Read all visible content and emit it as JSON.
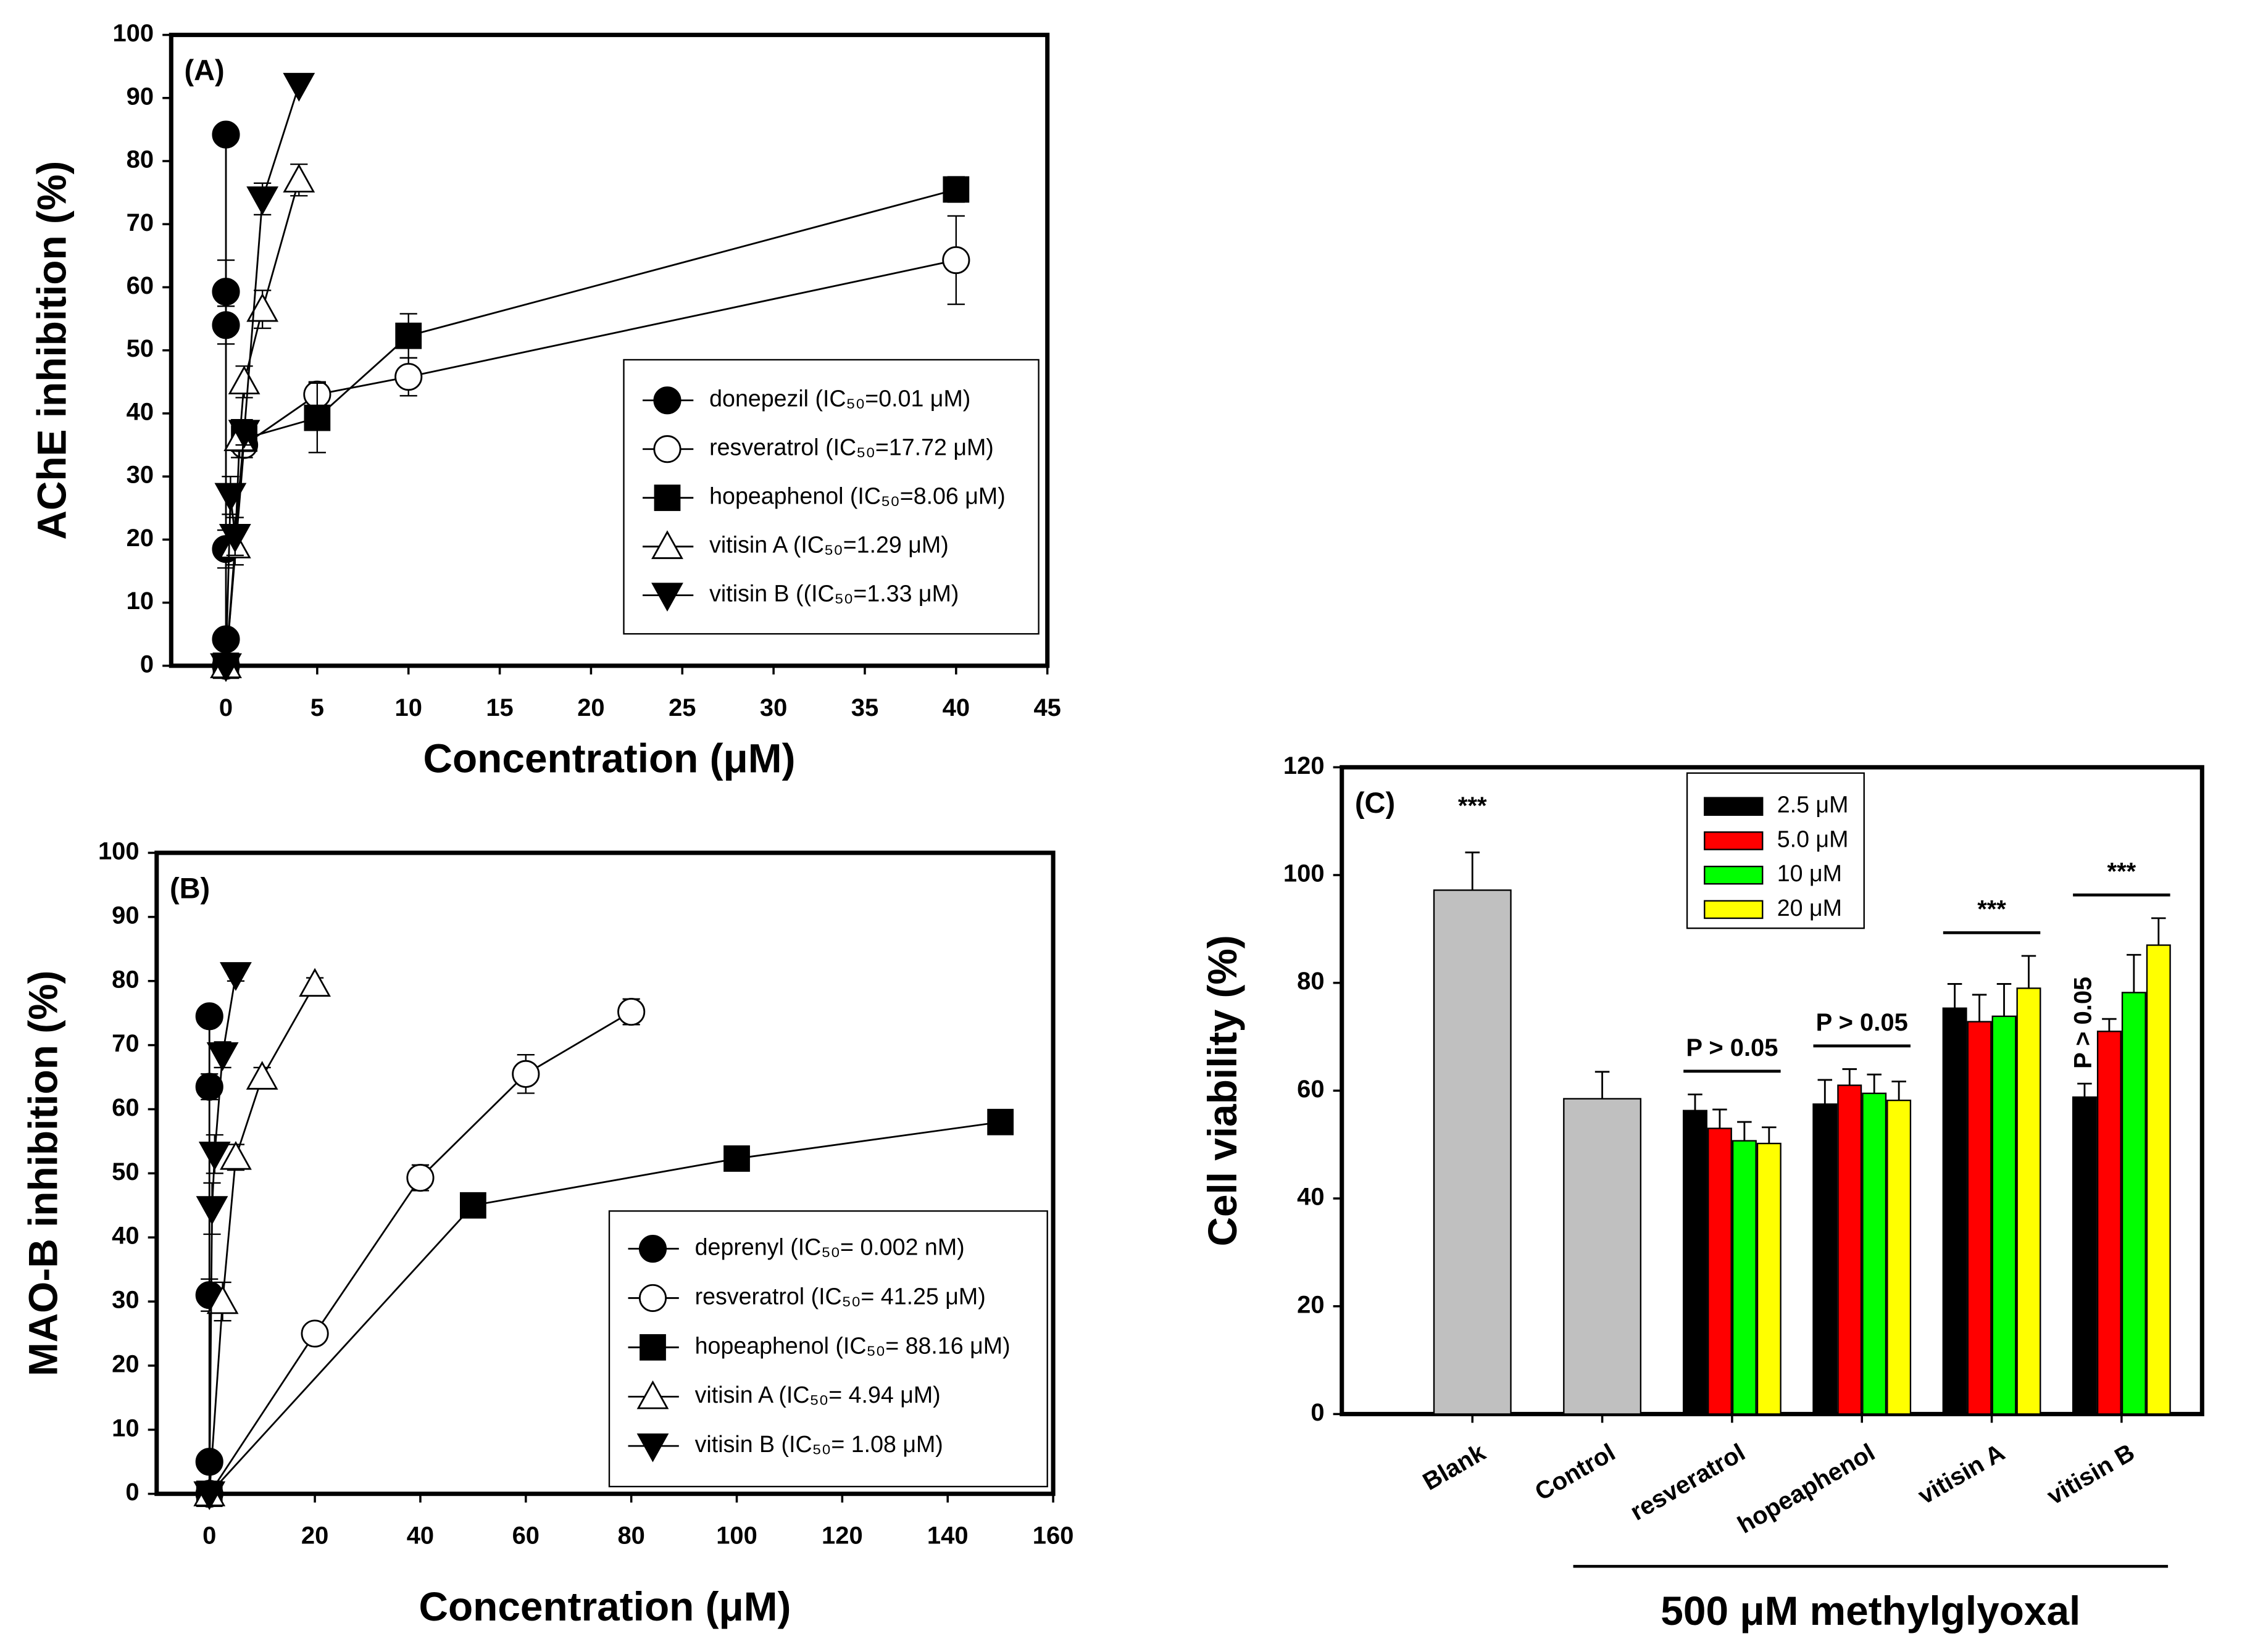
{
  "chart_data": [
    {
      "type": "line",
      "title": "(A)",
      "x_label": "Concentration (μM)",
      "y_label": "AChE inhibition (%)",
      "xlim": [
        -3,
        45
      ],
      "xticks": [
        0,
        5,
        10,
        15,
        20,
        25,
        30,
        35,
        40,
        45
      ],
      "ylim": [
        0,
        100
      ],
      "yticks": [
        0,
        10,
        20,
        30,
        40,
        50,
        60,
        70,
        80,
        90,
        100
      ],
      "legend": "lower right",
      "series": [
        {
          "name": "donepezil (IC₅₀=0.01 μM)",
          "marker": "circle",
          "color": "#000000",
          "x": [
            0,
            0,
            0,
            0,
            0,
            0
          ],
          "values": [
            0,
            4.2,
            18.5,
            54,
            59.3,
            84.2
          ],
          "errors": [
            0,
            1,
            3,
            3,
            5,
            0
          ]
        },
        {
          "name": "resveratrol (IC₅₀=17.72 μM)",
          "marker": "circle-open",
          "color": "#000000",
          "x": [
            0,
            1,
            5,
            10,
            40
          ],
          "values": [
            0,
            35,
            43,
            45.8,
            64.3
          ],
          "errors": [
            0,
            2,
            2,
            3,
            7
          ]
        },
        {
          "name": "hopeaphenol (IC₅₀=8.06 μM)",
          "marker": "square",
          "color": "#000000",
          "x": [
            0,
            1,
            5,
            10,
            40
          ],
          "values": [
            0,
            36,
            39.3,
            52.3,
            75.5
          ],
          "errors": [
            0,
            2,
            5.5,
            3.5,
            2
          ]
        },
        {
          "name": "vitisin A (IC₅₀=1.29 μM)",
          "marker": "triangle-open",
          "color": "#000000",
          "x": [
            0,
            0.5,
            0.75,
            1,
            2,
            4
          ],
          "values": [
            0,
            19,
            36,
            45,
            56.5,
            77
          ],
          "errors": [
            0,
            3,
            3,
            2.5,
            3,
            2.5
          ]
        },
        {
          "name": "vitisin B ((IC₅₀=1.33 μM)",
          "marker": "triangle-down",
          "color": "#000000",
          "x": [
            0,
            0.25,
            0.5,
            1,
            2,
            4
          ],
          "values": [
            0,
            27,
            20.5,
            37,
            74,
            92
          ],
          "errors": [
            0,
            3,
            3,
            2,
            2.5,
            0
          ]
        }
      ]
    },
    {
      "type": "line",
      "title": "(B)",
      "x_label": "Concentration (μM)",
      "y_label": "MAO-B inhibition (%)",
      "xlim": [
        -10,
        160
      ],
      "xticks": [
        0,
        20,
        40,
        60,
        80,
        100,
        120,
        140,
        160
      ],
      "ylim": [
        0,
        100
      ],
      "yticks": [
        0,
        10,
        20,
        30,
        40,
        50,
        60,
        70,
        80,
        90,
        100
      ],
      "legend": "lower right",
      "series": [
        {
          "name": "deprenyl (IC₅₀= 0.002 nM)",
          "marker": "circle",
          "color": "#000000",
          "x": [
            0,
            0,
            0,
            0,
            0
          ],
          "values": [
            0,
            5,
            31,
            63.5,
            74.5
          ],
          "errors": [
            0,
            0,
            2.5,
            2,
            0
          ]
        },
        {
          "name": "resveratrol (IC₅₀= 41.25 μM)",
          "marker": "circle-open",
          "color": "#000000",
          "x": [
            0,
            20,
            40,
            60,
            80
          ],
          "values": [
            0,
            25,
            49.3,
            65.5,
            75.2
          ],
          "errors": [
            0,
            1.5,
            2,
            3,
            2
          ]
        },
        {
          "name": "hopeaphenol (IC₅₀= 88.16 μM)",
          "marker": "square",
          "color": "#000000",
          "x": [
            0,
            50,
            100,
            150
          ],
          "values": [
            0,
            45,
            52.3,
            58
          ],
          "errors": [
            0,
            0,
            0,
            0
          ]
        },
        {
          "name": "vitisin A (IC₅₀= 4.94 μM)",
          "marker": "triangle-open",
          "color": "#000000",
          "x": [
            0,
            2.5,
            5,
            10,
            20
          ],
          "values": [
            0,
            30,
            52.5,
            65,
            79.5
          ],
          "errors": [
            0,
            3,
            2,
            1.5,
            1
          ]
        },
        {
          "name": "vitisin B (IC₅₀= 1.08 μM)",
          "marker": "triangle-down",
          "color": "#000000",
          "x": [
            0,
            0.5,
            1,
            2.5,
            5
          ],
          "values": [
            0,
            44.5,
            53,
            68.5,
            81
          ],
          "errors": [
            0,
            4,
            3,
            2,
            1
          ]
        }
      ]
    },
    {
      "type": "bar",
      "title": "(C)",
      "y_label": "Cell viability (%)",
      "categories": [
        "Blank",
        "Control",
        "resveratrol",
        "hopeaphenol",
        "vitisin A",
        "vitisin B"
      ],
      "ylim": [
        0,
        120
      ],
      "yticks": [
        0,
        20,
        40,
        60,
        80,
        100,
        120
      ],
      "legend": "upper center",
      "reference": {
        "color": "#c0c0c0",
        "values": [
          97.2,
          58.5,
          null,
          null,
          null,
          null
        ],
        "errors": [
          7,
          5,
          null,
          null,
          null,
          null
        ]
      },
      "series": [
        {
          "name": "2.5 μM",
          "color": "#000000",
          "values": [
            null,
            null,
            56.3,
            57.5,
            75.3,
            58.8
          ],
          "errors": [
            null,
            null,
            3,
            4.5,
            4.5,
            2.5
          ]
        },
        {
          "name": "5.0 μM",
          "color": "#ff0000",
          "values": [
            null,
            null,
            53,
            61,
            72.8,
            71
          ],
          "errors": [
            null,
            null,
            3.5,
            3,
            5,
            2.3
          ]
        },
        {
          "name": "10 μM",
          "color": "#00ff00",
          "values": [
            null,
            null,
            50.7,
            59.5,
            73.8,
            78.2
          ],
          "errors": [
            null,
            null,
            3.5,
            3.5,
            6,
            7
          ]
        },
        {
          "name": "20 μM",
          "color": "#ffff00",
          "values": [
            null,
            null,
            50.2,
            58.2,
            79,
            87
          ],
          "errors": [
            null,
            null,
            3,
            3.5,
            6,
            5
          ]
        }
      ],
      "annotations": [
        {
          "text": "***",
          "category": 0
        },
        {
          "text": "P > 0.05",
          "category": 2,
          "line": true
        },
        {
          "text": "P > 0.05",
          "category": 3,
          "line": true
        },
        {
          "text": "***",
          "category": 4,
          "line": true
        },
        {
          "text": "***",
          "category": 5,
          "line": true
        },
        {
          "text": "P > 0.05",
          "category": 5,
          "series": 0,
          "rotated": true
        }
      ],
      "group_label": {
        "text": "500 μM methylglyoxal",
        "from": 1,
        "to": 5
      }
    }
  ]
}
